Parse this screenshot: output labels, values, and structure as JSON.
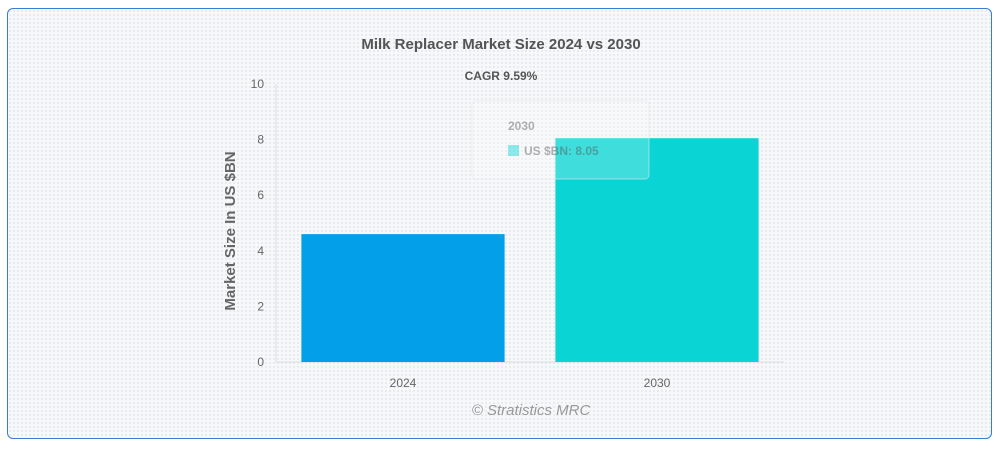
{
  "chart_data": {
    "type": "bar",
    "title": "Milk Replacer Market Size 2024 vs 2030",
    "subtitle": "CAGR 9.59%",
    "xlabel": "",
    "ylabel": "Market Size In US $BN",
    "categories": [
      "2024",
      "2030"
    ],
    "values": [
      4.6,
      8.05
    ],
    "ylim": [
      0,
      10
    ],
    "yticks": [
      0,
      2,
      4,
      6,
      8,
      10
    ],
    "colors": [
      "#049fe9",
      "#0ad5d4"
    ],
    "grid": false,
    "legend": "none"
  },
  "tooltip": {
    "title": "2030",
    "label": "US $BN: 8.05",
    "swatch_color": "#0ad5d4"
  },
  "watermark": "© Stratistics MRC"
}
